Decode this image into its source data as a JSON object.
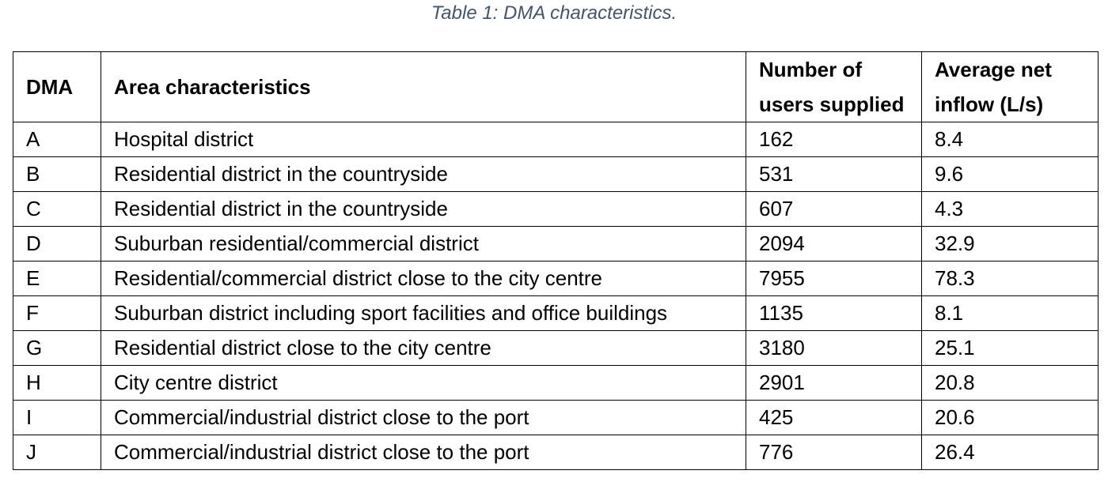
{
  "caption": "Table 1: DMA characteristics.",
  "table": {
    "headers": {
      "dma": "DMA",
      "area": "Area characteristics",
      "users_line1": "Number of",
      "users_line2": "users supplied",
      "inflow_line1": "Average net",
      "inflow_line2": "inflow (L/s)"
    },
    "rows": [
      {
        "dma": "A",
        "area": "Hospital district",
        "users": "162",
        "inflow": "8.4"
      },
      {
        "dma": "B",
        "area": "Residential district in the countryside",
        "users": "531",
        "inflow": "9.6"
      },
      {
        "dma": "C",
        "area": "Residential district in the countryside",
        "users": "607",
        "inflow": "4.3"
      },
      {
        "dma": "D",
        "area": "Suburban residential/commercial district",
        "users": "2094",
        "inflow": "32.9"
      },
      {
        "dma": "E",
        "area": "Residential/commercial district close to the city centre",
        "users": "7955",
        "inflow": "78.3"
      },
      {
        "dma": "F",
        "area": "Suburban district including sport facilities and office buildings",
        "users": "1135",
        "inflow": "8.1"
      },
      {
        "dma": "G",
        "area": "Residential district close to the city centre",
        "users": "3180",
        "inflow": "25.1"
      },
      {
        "dma": "H",
        "area": "City centre district",
        "users": "2901",
        "inflow": "20.8"
      },
      {
        "dma": "I",
        "area": "Commercial/industrial district close to the port",
        "users": "425",
        "inflow": "20.6"
      },
      {
        "dma": "J",
        "area": "Commercial/industrial district close to the port",
        "users": "776",
        "inflow": "26.4"
      }
    ]
  }
}
